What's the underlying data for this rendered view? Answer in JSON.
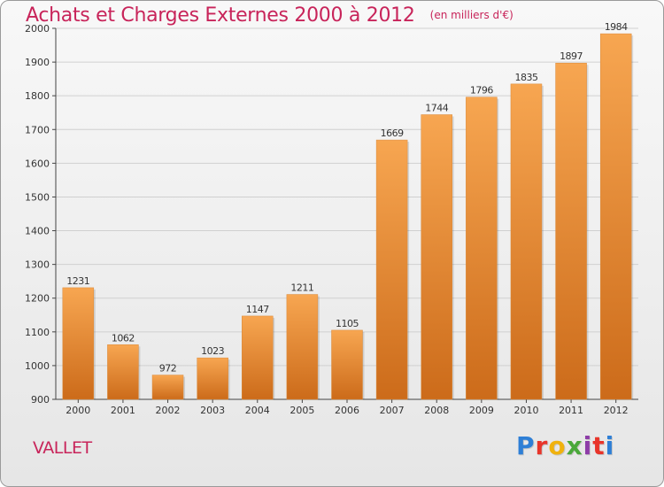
{
  "header": {
    "title": "Achats et Charges Externes 2000 à 2012",
    "unit": "(en milliers d'€)"
  },
  "footer": {
    "commune": "VALLET",
    "logo": "Proxiti",
    "logo_colors": [
      "#2e7fd6",
      "#e8352a",
      "#f0b20e",
      "#4aa83a",
      "#8e3da8",
      "#e8352a",
      "#2e7fd6"
    ]
  },
  "colors": {
    "bar_top": "#f7a651",
    "bar_bottom": "#cc6b1a",
    "title": "#c8245a"
  },
  "chart_data": {
    "type": "bar",
    "title": "Achats et Charges Externes 2000 à 2012",
    "subtitle": "(en milliers d'€)",
    "xlabel": "",
    "ylabel": "",
    "categories": [
      "2000",
      "2001",
      "2002",
      "2003",
      "2004",
      "2005",
      "2006",
      "2007",
      "2008",
      "2009",
      "2010",
      "2011",
      "2012"
    ],
    "values": [
      1231,
      1062,
      972,
      1023,
      1147,
      1211,
      1105,
      1669,
      1744,
      1796,
      1835,
      1897,
      1984
    ],
    "ylim": [
      900,
      2000
    ],
    "yticks": [
      900,
      1000,
      1100,
      1200,
      1300,
      1400,
      1500,
      1600,
      1700,
      1800,
      1900,
      2000
    ],
    "grid": true,
    "data_labels": true
  }
}
